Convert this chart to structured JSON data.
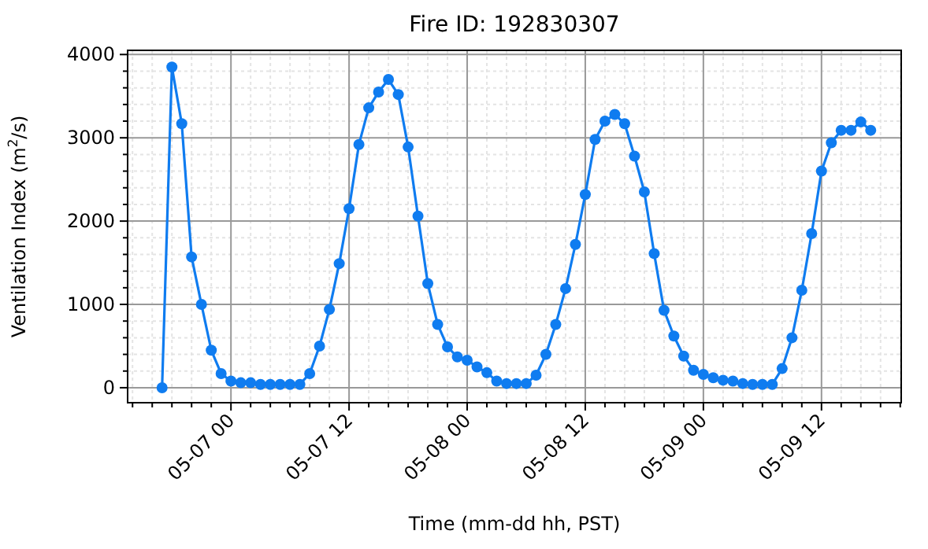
{
  "chart_data": {
    "type": "line",
    "title": "Fire ID: 192830307",
    "xlabel": "Time (mm-dd hh, PST)",
    "ylabel": "Ventilation Index (m$^{2}$/s)",
    "x": [
      "--05-06T17:00",
      "--05-06T18:00",
      "--05-06T19:00",
      "--05-06T20:00",
      "--05-06T21:00",
      "--05-06T22:00",
      "--05-06T23:00",
      "--05-07T00:00",
      "--05-07T01:00",
      "--05-07T02:00",
      "--05-07T03:00",
      "--05-07T04:00",
      "--05-07T05:00",
      "--05-07T06:00",
      "--05-07T07:00",
      "--05-07T08:00",
      "--05-07T09:00",
      "--05-07T10:00",
      "--05-07T11:00",
      "--05-07T12:00",
      "--05-07T13:00",
      "--05-07T14:00",
      "--05-07T15:00",
      "--05-07T16:00",
      "--05-07T17:00",
      "--05-07T18:00",
      "--05-07T19:00",
      "--05-07T20:00",
      "--05-07T21:00",
      "--05-07T22:00",
      "--05-07T23:00",
      "--05-08T00:00",
      "--05-08T01:00",
      "--05-08T02:00",
      "--05-08T03:00",
      "--05-08T04:00",
      "--05-08T05:00",
      "--05-08T06:00",
      "--05-08T07:00",
      "--05-08T08:00",
      "--05-08T09:00",
      "--05-08T10:00",
      "--05-08T11:00",
      "--05-08T12:00",
      "--05-08T13:00",
      "--05-08T14:00",
      "--05-08T15:00",
      "--05-08T16:00",
      "--05-08T17:00",
      "--05-08T18:00",
      "--05-08T19:00",
      "--05-08T20:00",
      "--05-08T21:00",
      "--05-08T22:00",
      "--05-08T23:00",
      "--05-09T00:00",
      "--05-09T01:00",
      "--05-09T02:00",
      "--05-09T03:00",
      "--05-09T04:00",
      "--05-09T05:00",
      "--05-09T06:00",
      "--05-09T07:00",
      "--05-09T08:00",
      "--05-09T09:00",
      "--05-09T10:00",
      "--05-09T11:00",
      "--05-09T12:00",
      "--05-09T13:00",
      "--05-09T14:00",
      "--05-09T15:00",
      "--05-09T16:00",
      "--05-09T17:00"
    ],
    "series": [
      {
        "color": "#0f7cf0",
        "values": [
          0,
          3850,
          3170,
          1570,
          1000,
          450,
          170,
          80,
          60,
          60,
          40,
          40,
          40,
          40,
          40,
          170,
          500,
          940,
          1490,
          2150,
          2920,
          3360,
          3550,
          3700,
          3520,
          2890,
          2060,
          1250,
          760,
          490,
          370,
          330,
          250,
          180,
          80,
          50,
          50,
          50,
          150,
          400,
          760,
          1190,
          1720,
          2320,
          2980,
          3200,
          3280,
          3170,
          2780,
          2350,
          1610,
          930,
          620,
          380,
          210,
          160,
          120,
          90,
          80,
          50,
          40,
          40,
          40,
          230,
          600,
          1170,
          1850,
          2600,
          2940,
          3090,
          3090,
          3190,
          3090
        ]
      }
    ],
    "xlim": [
      "--05-06T13:30",
      "--05-09T20:06"
    ],
    "ylim": [
      -180,
      4050
    ],
    "xticks": [
      {
        "value": "--05-06T14:00",
        "label": null
      },
      {
        "value": "--05-06T16:00",
        "label": null
      },
      {
        "value": "--05-06T18:00",
        "label": null
      },
      {
        "value": "--05-06T20:00",
        "label": null
      },
      {
        "value": "--05-06T22:00",
        "label": null
      },
      {
        "value": "--05-07T00:00",
        "label": "05-07 00"
      },
      {
        "value": "--05-07T02:00",
        "label": null
      },
      {
        "value": "--05-07T04:00",
        "label": null
      },
      {
        "value": "--05-07T06:00",
        "label": null
      },
      {
        "value": "--05-07T08:00",
        "label": null
      },
      {
        "value": "--05-07T10:00",
        "label": null
      },
      {
        "value": "--05-07T12:00",
        "label": "05-07 12"
      },
      {
        "value": "--05-07T14:00",
        "label": null
      },
      {
        "value": "--05-07T16:00",
        "label": null
      },
      {
        "value": "--05-07T18:00",
        "label": null
      },
      {
        "value": "--05-07T20:00",
        "label": null
      },
      {
        "value": "--05-07T22:00",
        "label": null
      },
      {
        "value": "--05-08T00:00",
        "label": "05-08 00"
      },
      {
        "value": "--05-08T02:00",
        "label": null
      },
      {
        "value": "--05-08T04:00",
        "label": null
      },
      {
        "value": "--05-08T06:00",
        "label": null
      },
      {
        "value": "--05-08T08:00",
        "label": null
      },
      {
        "value": "--05-08T10:00",
        "label": null
      },
      {
        "value": "--05-08T12:00",
        "label": "05-08 12"
      },
      {
        "value": "--05-08T14:00",
        "label": null
      },
      {
        "value": "--05-08T16:00",
        "label": null
      },
      {
        "value": "--05-08T18:00",
        "label": null
      },
      {
        "value": "--05-08T20:00",
        "label": null
      },
      {
        "value": "--05-08T22:00",
        "label": null
      },
      {
        "value": "--05-09T00:00",
        "label": "05-09 00"
      },
      {
        "value": "--05-09T02:00",
        "label": null
      },
      {
        "value": "--05-09T04:00",
        "label": null
      },
      {
        "value": "--05-09T06:00",
        "label": null
      },
      {
        "value": "--05-09T08:00",
        "label": null
      },
      {
        "value": "--05-09T10:00",
        "label": null
      },
      {
        "value": "--05-09T12:00",
        "label": "05-09 12"
      },
      {
        "value": "--05-09T14:00",
        "label": null
      },
      {
        "value": "--05-09T16:00",
        "label": null
      },
      {
        "value": "--05-09T18:00",
        "label": null
      },
      {
        "value": "--05-09T20:00",
        "label": null
      }
    ],
    "yticks": [
      0,
      {
        "value": 200,
        "label": null
      },
      {
        "value": 400,
        "label": null
      },
      {
        "value": 600,
        "label": null
      },
      {
        "value": 800,
        "label": null
      },
      1000,
      {
        "value": 1200,
        "label": null
      },
      {
        "value": 1400,
        "label": null
      },
      {
        "value": 1600,
        "label": null
      },
      {
        "value": 1800,
        "label": null
      },
      2000,
      {
        "value": 2200,
        "label": null
      },
      {
        "value": 2400,
        "label": null
      },
      {
        "value": 2600,
        "label": null
      },
      {
        "value": 2800,
        "label": null
      },
      3000,
      {
        "value": 3200,
        "label": null
      },
      {
        "value": 3400,
        "label": null
      },
      {
        "value": 3600,
        "label": null
      },
      {
        "value": 3800,
        "label": null
      },
      4000
    ],
    "grid": true,
    "marker": "circle",
    "line_style": "solid"
  }
}
